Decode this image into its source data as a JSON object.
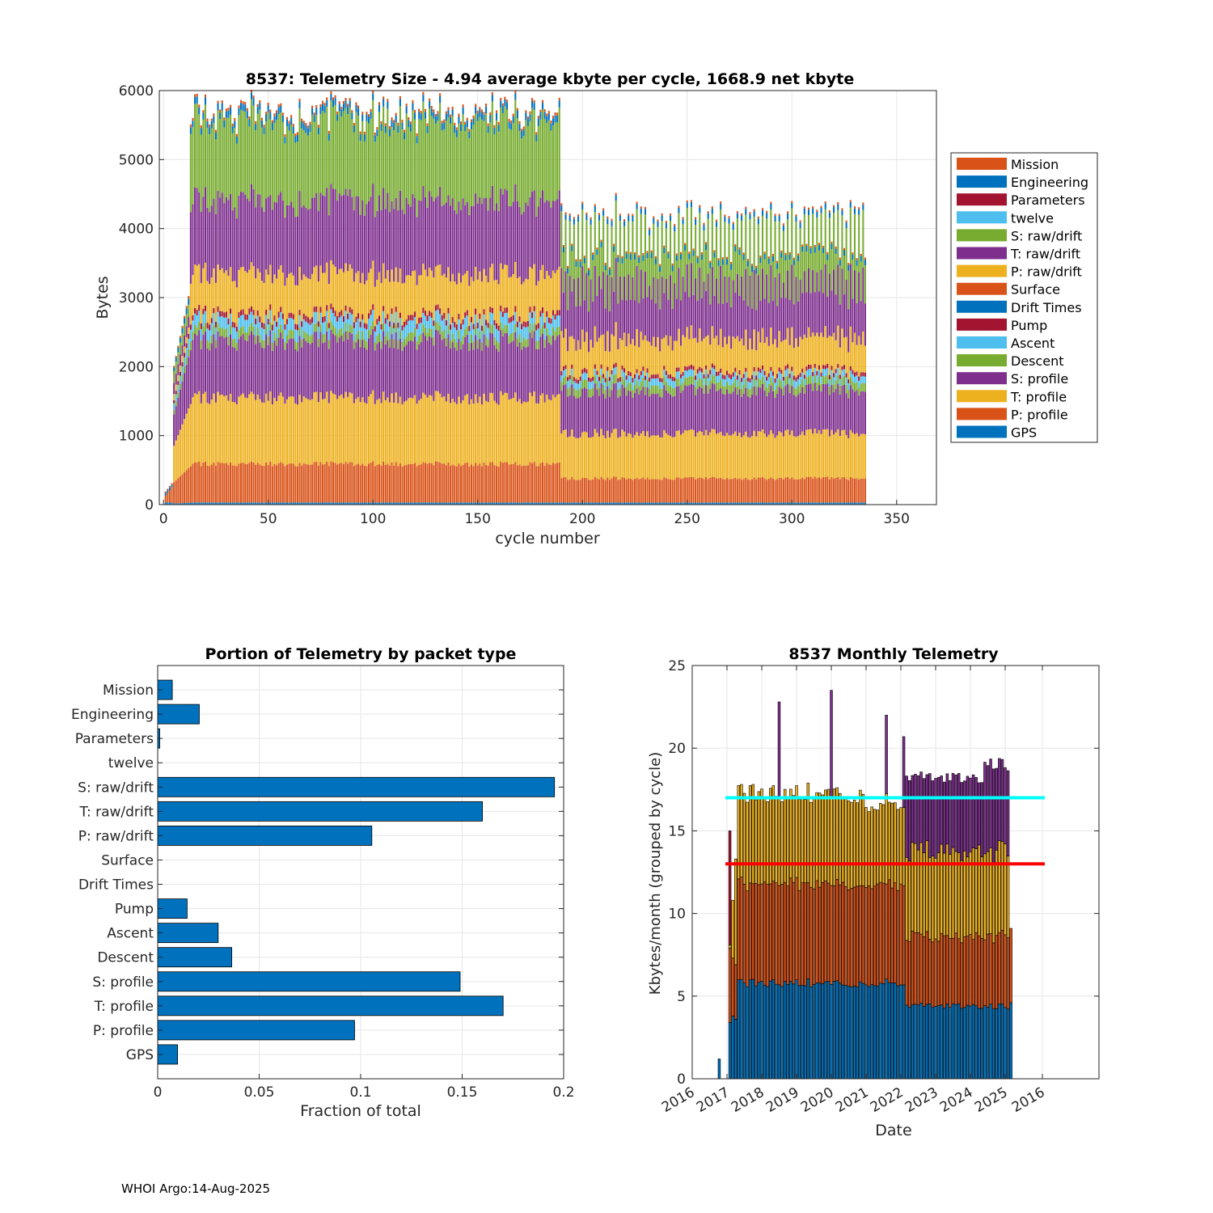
{
  "footer": "WHOI Argo:14-Aug-2025",
  "colors": {
    "blue": "#0072BD",
    "orange": "#D95319",
    "yellow": "#EDB120",
    "purple": "#7E2F8E",
    "green": "#77AC30",
    "cyan": "#4DBEEE",
    "maroon": "#A2142F",
    "cyan_line": "#00FFFF",
    "red_line": "#FF0000",
    "grid": "#e6e6e6",
    "axis": "#262626"
  },
  "chart_data": [
    {
      "id": "top",
      "type": "bar",
      "stacked": true,
      "title": "8537: Telemetry Size - 4.94 average kbyte per cycle, 1668.9 net kbyte",
      "xlabel": "cycle number",
      "ylabel": "Bytes",
      "xlim": [
        -2,
        369
      ],
      "ylim": [
        0,
        6000
      ],
      "xticks": [
        0,
        50,
        100,
        150,
        200,
        250,
        300,
        350
      ],
      "yticks": [
        0,
        1000,
        2000,
        3000,
        4000,
        5000,
        6000
      ],
      "grid": true,
      "legend_position": "outside-right",
      "stack_order": [
        "GPS",
        "P: profile",
        "T: profile",
        "S: profile",
        "Descent",
        "Ascent",
        "Pump",
        "Drift Times",
        "Surface",
        "P: raw/drift",
        "T: raw/drift",
        "S: raw/drift",
        "twelve",
        "Parameters",
        "Engineering",
        "Mission"
      ],
      "legend": [
        {
          "name": "Mission",
          "color": "#D95319"
        },
        {
          "name": "Engineering",
          "color": "#0072BD"
        },
        {
          "name": "Parameters",
          "color": "#A2142F"
        },
        {
          "name": "twelve",
          "color": "#4DBEEE"
        },
        {
          "name": "S: raw/drift",
          "color": "#77AC30"
        },
        {
          "name": "T: raw/drift",
          "color": "#7E2F8E"
        },
        {
          "name": "P: raw/drift",
          "color": "#EDB120"
        },
        {
          "name": "Surface",
          "color": "#D95319"
        },
        {
          "name": "Drift Times",
          "color": "#0072BD"
        },
        {
          "name": "Pump",
          "color": "#A2142F"
        },
        {
          "name": "Ascent",
          "color": "#4DBEEE"
        },
        {
          "name": "Descent",
          "color": "#77AC30"
        },
        {
          "name": "S: profile",
          "color": "#7E2F8E"
        },
        {
          "name": "T: profile",
          "color": "#EDB120"
        },
        {
          "name": "P: profile",
          "color": "#D95319"
        },
        {
          "name": "GPS",
          "color": "#0072BD"
        }
      ],
      "series_summary": {
        "cycles": [
          1,
          335
        ],
        "phases": [
          {
            "cycles": "13-189",
            "GPS": 30,
            "P: profile": 560,
            "T: profile": 960,
            "S: profile": 830,
            "Descent": 120,
            "Ascent": 170,
            "Pump": 80,
            "P: raw/drift": 600,
            "T: raw/drift": 1060,
            "S: raw/drift": 1150,
            "Engineering": 100,
            "Mission": 40,
            "typical_total": 5600
          },
          {
            "cycles": "190-335",
            "GPS": 30,
            "P: profile": 350,
            "T: profile": 650,
            "S: profile": 620,
            "Descent": 120,
            "Ascent": 100,
            "Pump": 60,
            "P: raw/drift": 550,
            "T: raw/drift": 870,
            "S: raw/drift": 780,
            "Engineering": 80,
            "Mission": 30,
            "typical_total": 4300
          }
        ]
      }
    },
    {
      "id": "bottom-left",
      "type": "bar",
      "orientation": "horizontal",
      "title": "Portion of Telemetry by packet type",
      "xlabel": "Fraction of total",
      "ylabel": "",
      "xlim": [
        0,
        0.2
      ],
      "xticks": [
        0,
        0.05,
        0.1,
        0.15,
        0.2
      ],
      "xtick_labels": [
        "0",
        "0.05",
        "0.1",
        "0.15",
        "0.2"
      ],
      "grid": true,
      "color": "#0072BD",
      "categories": [
        "Mission",
        "Engineering",
        "Parameters",
        "twelve",
        "S: raw/drift",
        "T: raw/drift",
        "P: raw/drift",
        "Surface",
        "Drift Times",
        "Pump",
        "Ascent",
        "Descent",
        "S: profile",
        "T: profile",
        "P: profile",
        "GPS"
      ],
      "values": [
        0.0072,
        0.0205,
        0.001,
        0,
        0.1955,
        0.16,
        0.1055,
        0,
        0,
        0.0145,
        0.0298,
        0.0365,
        0.149,
        0.1702,
        0.097,
        0.0098
      ]
    },
    {
      "id": "bottom-right",
      "type": "bar",
      "stacked": true,
      "title": "8537 Monthly Telemetry",
      "xlabel": "Date",
      "ylabel": "Kbytes/month (grouped by cycle)",
      "ylim": [
        0,
        25
      ],
      "yticks": [
        0,
        5,
        10,
        15,
        20,
        25
      ],
      "xtick_labels": [
        "2016",
        "2017",
        "2018",
        "2019",
        "2020",
        "2021",
        "2022",
        "2023",
        "2024",
        "2025",
        "2016"
      ],
      "grid": true,
      "reference_lines": [
        {
          "y": 17,
          "color": "#00FFFF"
        },
        {
          "y": 13,
          "color": "#FF0000"
        }
      ],
      "series_summary": {
        "months": "2017-03 to 2025-03",
        "layers": [
          "blue",
          "orange",
          "yellow",
          "purple"
        ],
        "period_a": {
          "range": "2017-05 to 2022-02",
          "blue": 5.8,
          "orange": 6.0,
          "yellow": 5.5,
          "total": 17.3
        },
        "period_b": {
          "range": "2022-03 to 2025-03",
          "blue": 4.4,
          "orange": 4.2,
          "yellow": 5.2,
          "purple": 4.4,
          "total": 18.2
        },
        "spikes": [
          {
            "date": "2018-07",
            "total": 22.8
          },
          {
            "date": "2020-01",
            "total": 23.5
          },
          {
            "date": "2021-08",
            "total": 22.0
          },
          {
            "date": "2022-02",
            "total": 20.7
          }
        ]
      }
    }
  ]
}
